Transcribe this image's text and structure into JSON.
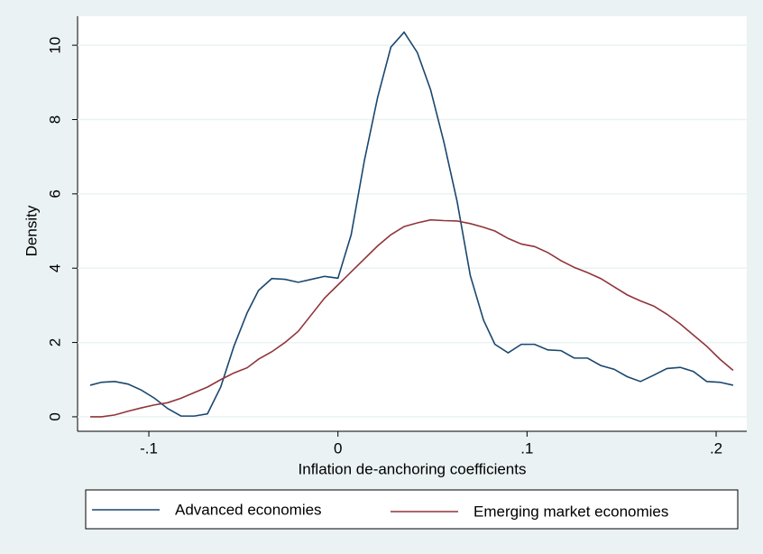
{
  "chart_data": {
    "type": "line",
    "xlabel": "Inflation de-anchoring coefficients",
    "ylabel": "Density",
    "x": [
      -0.131,
      -0.125,
      -0.118,
      -0.111,
      -0.104,
      -0.097,
      -0.09,
      -0.083,
      -0.076,
      -0.069,
      -0.062,
      -0.055,
      -0.048,
      -0.042,
      -0.035,
      -0.028,
      -0.021,
      -0.014,
      -0.007,
      0.0,
      0.007,
      0.014,
      0.021,
      0.028,
      0.035,
      0.042,
      0.049,
      0.056,
      0.063,
      0.07,
      0.077,
      0.083,
      0.09,
      0.097,
      0.104,
      0.111,
      0.118,
      0.125,
      0.132,
      0.139,
      0.146,
      0.153,
      0.16,
      0.167,
      0.174,
      0.181,
      0.188,
      0.195,
      0.202,
      0.209
    ],
    "series": [
      {
        "name": "Advanced economies",
        "color": "#1a476f",
        "values": [
          0.85,
          0.93,
          0.95,
          0.88,
          0.72,
          0.5,
          0.22,
          0.02,
          0.02,
          0.08,
          0.8,
          1.9,
          2.8,
          3.4,
          3.72,
          3.7,
          3.62,
          3.7,
          3.78,
          3.73,
          4.9,
          6.9,
          8.6,
          9.95,
          10.35,
          9.8,
          8.8,
          7.4,
          5.8,
          3.8,
          2.6,
          1.95,
          1.72,
          1.95,
          1.95,
          1.8,
          1.78,
          1.58,
          1.58,
          1.38,
          1.28,
          1.08,
          0.95,
          1.12,
          1.3,
          1.33,
          1.22,
          0.95,
          0.93,
          0.85
        ]
      },
      {
        "name": "Emerging market economies",
        "color": "#90353b",
        "values": [
          0,
          0,
          0.05,
          0.15,
          0.24,
          0.32,
          0.38,
          0.5,
          0.65,
          0.8,
          1.0,
          1.18,
          1.32,
          1.55,
          1.75,
          2.0,
          2.3,
          2.75,
          3.2,
          3.55,
          3.9,
          4.25,
          4.6,
          4.9,
          5.12,
          5.22,
          5.3,
          5.28,
          5.27,
          5.2,
          5.1,
          5.0,
          4.8,
          4.65,
          4.58,
          4.42,
          4.2,
          4.02,
          3.88,
          3.72,
          3.5,
          3.28,
          3.12,
          2.98,
          2.76,
          2.5,
          2.2,
          1.9,
          1.55,
          1.25
        ]
      }
    ],
    "xlim": [
      -0.1377,
      0.2162
    ],
    "xticks": [
      {
        "value": -0.1,
        "label": "-.1"
      },
      0,
      {
        "value": 0.1,
        "label": ".1"
      },
      {
        "value": 0.2,
        "label": ".2"
      }
    ],
    "ylim": [
      -0.39,
      10.78
    ],
    "yticks": [
      0,
      2,
      4,
      6,
      8,
      10
    ],
    "grid": true,
    "legend_position": "bottom"
  }
}
